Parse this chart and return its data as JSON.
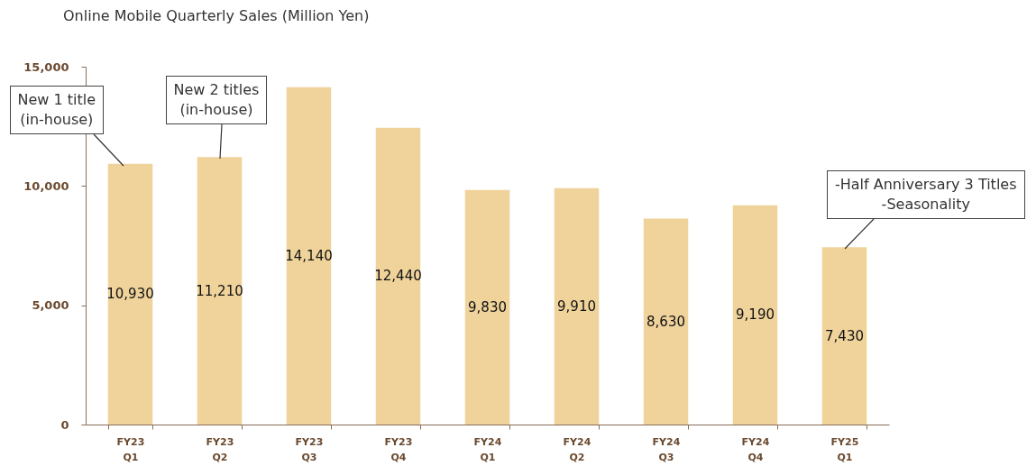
{
  "chart_data": {
    "type": "bar",
    "title": "Online Mobile Quarterly Sales (Million Yen)",
    "categories": [
      "FY23\nQ1",
      "FY23\nQ2",
      "FY23\nQ3",
      "FY23\nQ4",
      "FY24\nQ1",
      "FY24\nQ2",
      "FY24\nQ3",
      "FY24\nQ4",
      "FY25\nQ1"
    ],
    "values": [
      10930,
      11210,
      14140,
      12440,
      9830,
      9910,
      8630,
      9190,
      7430
    ],
    "color": "#efd39b",
    "ylim": [
      0,
      15000
    ],
    "yticks": [
      {
        "value": 0,
        "label": "0"
      },
      {
        "value": 5000,
        "label": "5,000"
      },
      {
        "value": 10000,
        "label": "10,000"
      },
      {
        "value": 15000,
        "label": "15,000"
      }
    ],
    "grid": false,
    "value_labels": [
      "10,930",
      "11,210",
      "14,140",
      "12,440",
      "9,830",
      "9,910",
      "8,630",
      "9,190",
      "7,430"
    ],
    "annotations": [
      {
        "text": "New 1 title\n(in-house)",
        "x": "FY23\nQ1",
        "y": 10930
      },
      {
        "text": "New 2 titles\n(in-house)",
        "x": "FY23\nQ2",
        "y": 11210
      },
      {
        "text": "-Half Anniversary 3 Titles\n-Seasonality",
        "x": "FY25\nQ1",
        "y": 7430
      }
    ]
  }
}
